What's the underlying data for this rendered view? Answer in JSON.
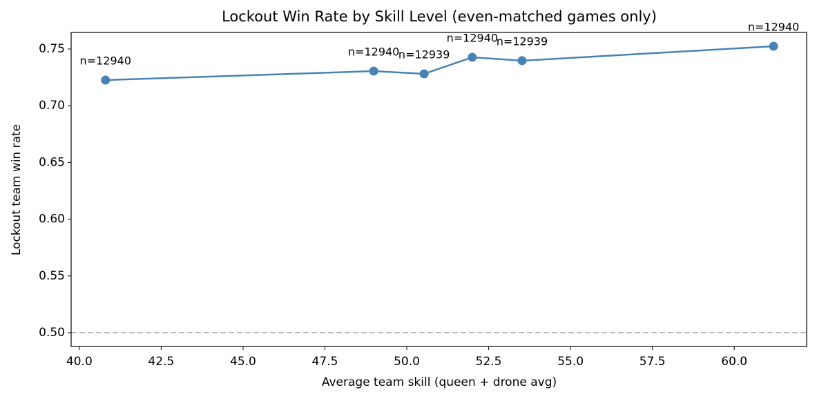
{
  "chart_data": {
    "type": "line",
    "title": "Lockout Win Rate by Skill Level (even-matched games only)",
    "x_label": "Average team skill (queen + drone avg)",
    "y_label": "Lockout team win rate",
    "x": [
      40.8,
      48.99,
      50.53,
      52.0,
      53.52,
      61.2
    ],
    "series": [
      {
        "name": "Lockout team win rate",
        "color": "#4682b4",
        "values": [
          0.7226,
          0.7305,
          0.7281,
          0.7427,
          0.7397,
          0.7524
        ]
      }
    ],
    "annotations": [
      "n=12940",
      "n=12940",
      "n=12939",
      "n=12940",
      "n=12939",
      "n=12940"
    ],
    "hline": 0.5,
    "hline_color": "#bbbbbb",
    "xlim": [
      39.75,
      62.21
    ],
    "ylim": [
      0.4878,
      0.7646
    ],
    "xticks": [
      {
        "value": 40,
        "label": "40.0"
      },
      42.5,
      {
        "value": 45,
        "label": "45.0"
      },
      47.5,
      {
        "value": 50,
        "label": "50.0"
      },
      52.5,
      {
        "value": 55,
        "label": "55.0"
      },
      57.5,
      {
        "value": 60,
        "label": "60.0"
      }
    ],
    "yticks": [
      {
        "value": 0.5,
        "label": "0.50"
      },
      0.55,
      {
        "value": 0.6,
        "label": "0.60"
      },
      0.65,
      {
        "value": 0.7,
        "label": "0.70"
      },
      0.75
    ],
    "grid": false
  }
}
